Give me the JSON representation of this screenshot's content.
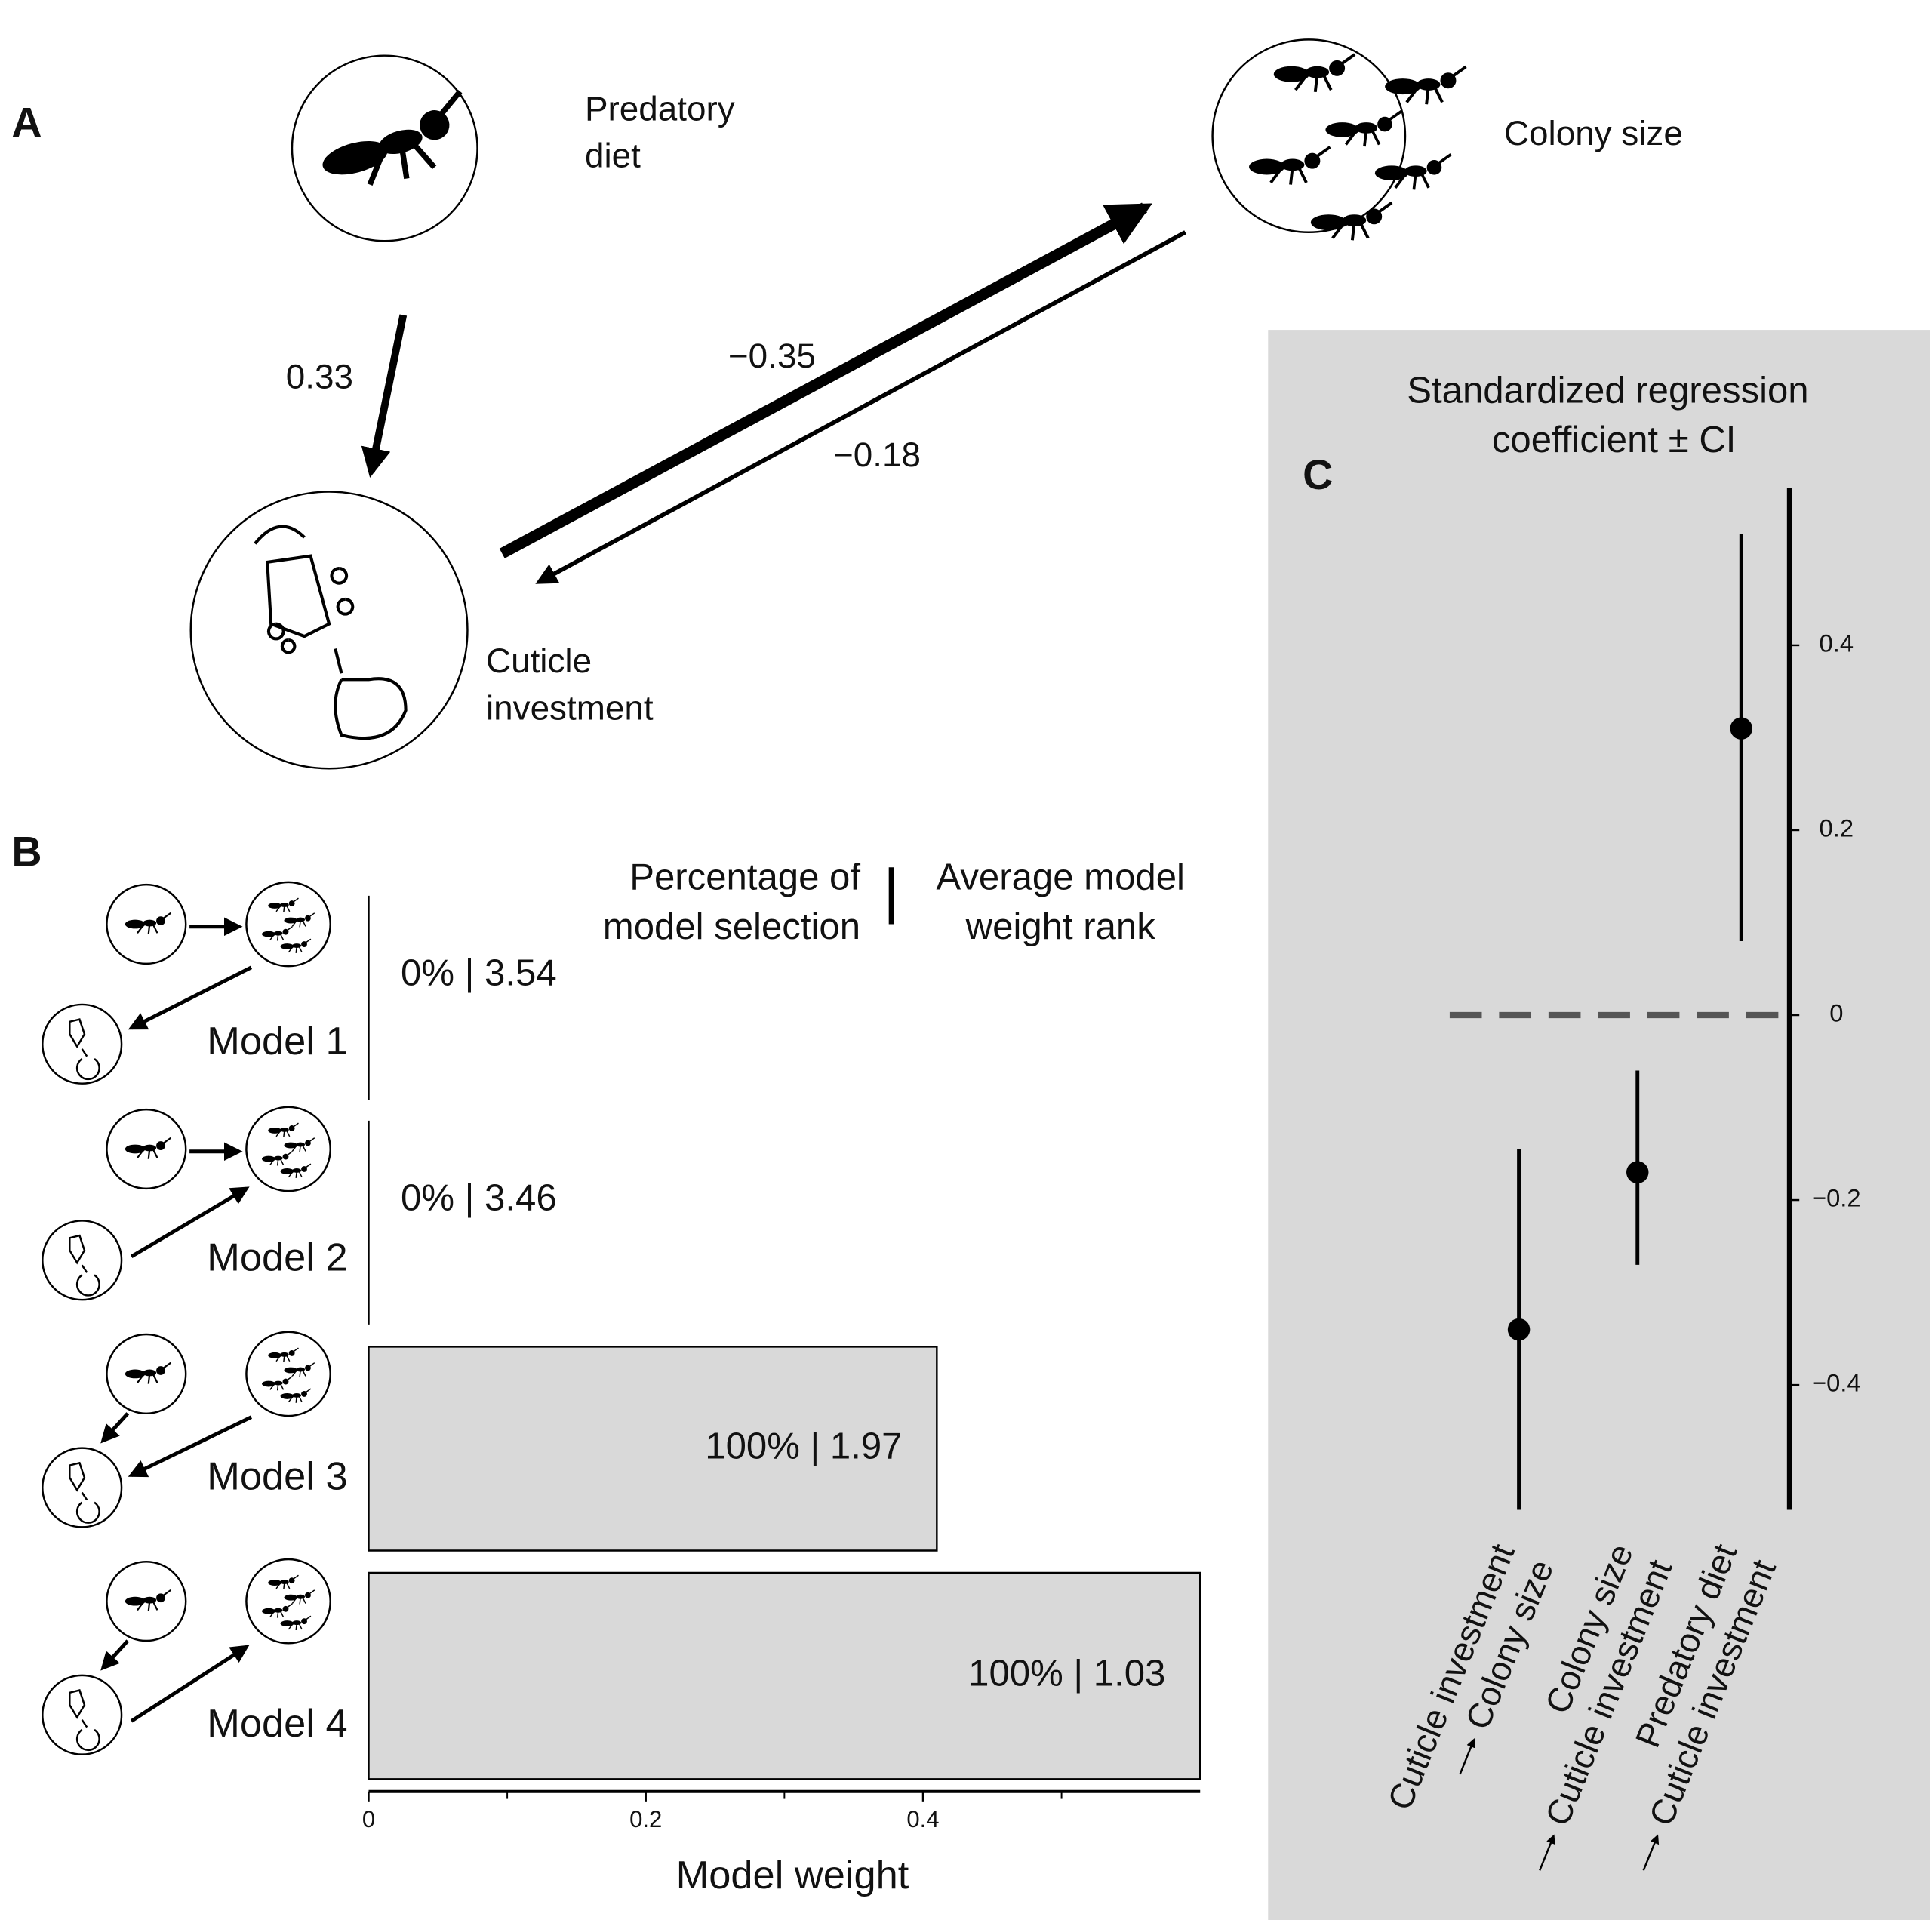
{
  "panel_labels": [
    "A",
    "B",
    "C"
  ],
  "diagram": {
    "nodes": [
      {
        "label": [
          "Predatory",
          "diet"
        ]
      },
      {
        "label": [
          "Colony size"
        ]
      },
      {
        "label": [
          "Cuticle",
          "investment"
        ]
      }
    ],
    "edges": [
      {
        "label": "0.33"
      },
      {
        "label": "−0.35"
      },
      {
        "label": "−0.18"
      }
    ]
  },
  "chart_data": [
    {
      "type": "bar",
      "orientation": "horizontal",
      "categories": [
        "Model 1",
        "Model 2",
        "Model 3",
        "Model 4"
      ],
      "values": [
        0,
        0,
        0.41,
        0.6
      ],
      "annotations": [
        "0% | 3.54",
        "0% | 3.46",
        "100% | 1.97",
        "100% | 1.03"
      ],
      "header": {
        "left": [
          "Percentage of",
          "model selection"
        ],
        "right": [
          "Average model",
          "weight rank"
        ]
      },
      "xlabel": "Model weight",
      "xlim": [
        0,
        0.6
      ],
      "xticks": [
        0,
        0.2,
        0.4
      ],
      "xminorticks": [
        0.1,
        0.3,
        0.5
      ],
      "color": "#d9d9d9"
    },
    {
      "type": "errorbar",
      "title": [
        "Standardized regression",
        "coefficient ± CI"
      ],
      "categories": [
        [
          "Cuticle investment",
          "Colony size"
        ],
        [
          "Colony size",
          "Cuticle investment"
        ],
        [
          "Predatory diet",
          "Cuticle investment"
        ]
      ],
      "values": [
        -0.34,
        -0.17,
        0.31
      ],
      "ci_low": [
        -0.535,
        -0.27,
        0.08
      ],
      "ci_high": [
        -0.145,
        -0.06,
        0.52
      ],
      "ylim": [
        -0.535,
        0.57
      ],
      "yticks": [
        {
          "value": -0.4,
          "label": "−0.4"
        },
        {
          "value": -0.2,
          "label": "−0.2"
        },
        0,
        0.2,
        0.4
      ],
      "hline": 0,
      "background": "#d9d9d9",
      "color": "#000000"
    }
  ]
}
